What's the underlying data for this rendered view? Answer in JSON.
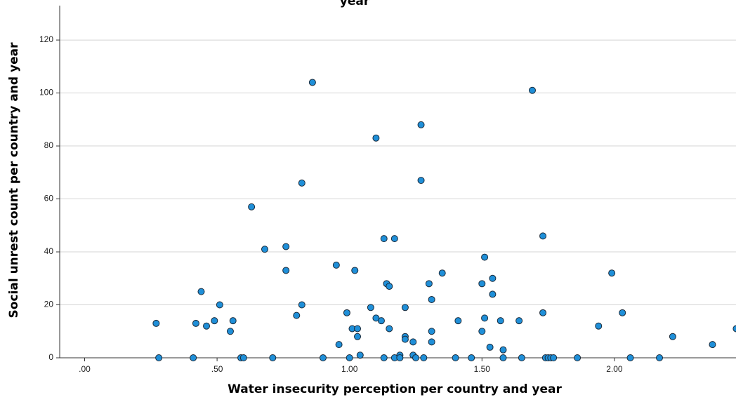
{
  "chart_data": {
    "type": "scatter",
    "title": "",
    "title_fragment": "year",
    "xlabel": "Water insecurity perception per country and year",
    "ylabel": "Social unrest count per country and year",
    "xlim": [
      -0.1,
      2.6
    ],
    "ylim": [
      0,
      133
    ],
    "x_ticks": [
      0,
      0.5,
      1.0,
      1.5,
      2.0,
      2.5
    ],
    "x_tick_labels": [
      ".00",
      ".50",
      "1.00",
      "1.50",
      "2.00",
      "2.50"
    ],
    "y_ticks": [
      0,
      20,
      40,
      60,
      80,
      100,
      120
    ],
    "y_tick_labels": [
      "0",
      "20",
      "40",
      "60",
      "80",
      "100",
      "120"
    ],
    "grid": "horizontal",
    "marker_color": "#1f8fd8",
    "marker_edge": "#1a2a3a",
    "points": [
      {
        "x": 0.27,
        "y": 13
      },
      {
        "x": 0.28,
        "y": 0
      },
      {
        "x": 0.41,
        "y": 0
      },
      {
        "x": 0.42,
        "y": 13
      },
      {
        "x": 0.44,
        "y": 25
      },
      {
        "x": 0.46,
        "y": 12
      },
      {
        "x": 0.49,
        "y": 14
      },
      {
        "x": 0.51,
        "y": 20
      },
      {
        "x": 0.55,
        "y": 10
      },
      {
        "x": 0.56,
        "y": 14
      },
      {
        "x": 0.59,
        "y": 0
      },
      {
        "x": 0.6,
        "y": 0
      },
      {
        "x": 0.63,
        "y": 57
      },
      {
        "x": 0.68,
        "y": 41
      },
      {
        "x": 0.71,
        "y": 0
      },
      {
        "x": 0.76,
        "y": 33
      },
      {
        "x": 0.76,
        "y": 42
      },
      {
        "x": 0.8,
        "y": 16
      },
      {
        "x": 0.82,
        "y": 66
      },
      {
        "x": 0.82,
        "y": 20
      },
      {
        "x": 0.86,
        "y": 104
      },
      {
        "x": 0.9,
        "y": 0
      },
      {
        "x": 0.95,
        "y": 35
      },
      {
        "x": 0.96,
        "y": 5
      },
      {
        "x": 0.99,
        "y": 17
      },
      {
        "x": 1.0,
        "y": 0
      },
      {
        "x": 1.01,
        "y": 11
      },
      {
        "x": 1.02,
        "y": 33
      },
      {
        "x": 1.03,
        "y": 11
      },
      {
        "x": 1.03,
        "y": 8
      },
      {
        "x": 1.04,
        "y": 1
      },
      {
        "x": 1.08,
        "y": 19
      },
      {
        "x": 1.1,
        "y": 83
      },
      {
        "x": 1.1,
        "y": 15
      },
      {
        "x": 1.12,
        "y": 14
      },
      {
        "x": 1.13,
        "y": 45
      },
      {
        "x": 1.13,
        "y": 0
      },
      {
        "x": 1.14,
        "y": 28
      },
      {
        "x": 1.15,
        "y": 11
      },
      {
        "x": 1.15,
        "y": 27
      },
      {
        "x": 1.17,
        "y": 45
      },
      {
        "x": 1.17,
        "y": 0
      },
      {
        "x": 1.19,
        "y": 1
      },
      {
        "x": 1.19,
        "y": 0
      },
      {
        "x": 1.21,
        "y": 19
      },
      {
        "x": 1.21,
        "y": 8
      },
      {
        "x": 1.21,
        "y": 7
      },
      {
        "x": 1.24,
        "y": 6
      },
      {
        "x": 1.24,
        "y": 1
      },
      {
        "x": 1.25,
        "y": 0
      },
      {
        "x": 1.27,
        "y": 88
      },
      {
        "x": 1.27,
        "y": 67
      },
      {
        "x": 1.28,
        "y": 0
      },
      {
        "x": 1.3,
        "y": 28
      },
      {
        "x": 1.31,
        "y": 22
      },
      {
        "x": 1.31,
        "y": 10
      },
      {
        "x": 1.31,
        "y": 6
      },
      {
        "x": 1.35,
        "y": 32
      },
      {
        "x": 1.4,
        "y": 0
      },
      {
        "x": 1.41,
        "y": 14
      },
      {
        "x": 1.46,
        "y": 0
      },
      {
        "x": 1.5,
        "y": 28
      },
      {
        "x": 1.5,
        "y": 10
      },
      {
        "x": 1.51,
        "y": 38
      },
      {
        "x": 1.51,
        "y": 15
      },
      {
        "x": 1.53,
        "y": 4
      },
      {
        "x": 1.54,
        "y": 24
      },
      {
        "x": 1.54,
        "y": 30
      },
      {
        "x": 1.57,
        "y": 14
      },
      {
        "x": 1.58,
        "y": 3
      },
      {
        "x": 1.58,
        "y": 0
      },
      {
        "x": 1.64,
        "y": 14
      },
      {
        "x": 1.65,
        "y": 0
      },
      {
        "x": 1.69,
        "y": 101
      },
      {
        "x": 1.73,
        "y": 46
      },
      {
        "x": 1.73,
        "y": 17
      },
      {
        "x": 1.74,
        "y": 0
      },
      {
        "x": 1.75,
        "y": 0
      },
      {
        "x": 1.76,
        "y": 0
      },
      {
        "x": 1.77,
        "y": 0
      },
      {
        "x": 1.86,
        "y": 0
      },
      {
        "x": 1.94,
        "y": 12
      },
      {
        "x": 1.99,
        "y": 32
      },
      {
        "x": 2.03,
        "y": 17
      },
      {
        "x": 2.06,
        "y": 0
      },
      {
        "x": 2.17,
        "y": 0
      },
      {
        "x": 2.22,
        "y": 8
      },
      {
        "x": 2.37,
        "y": 5
      },
      {
        "x": 2.46,
        "y": 11
      }
    ]
  }
}
